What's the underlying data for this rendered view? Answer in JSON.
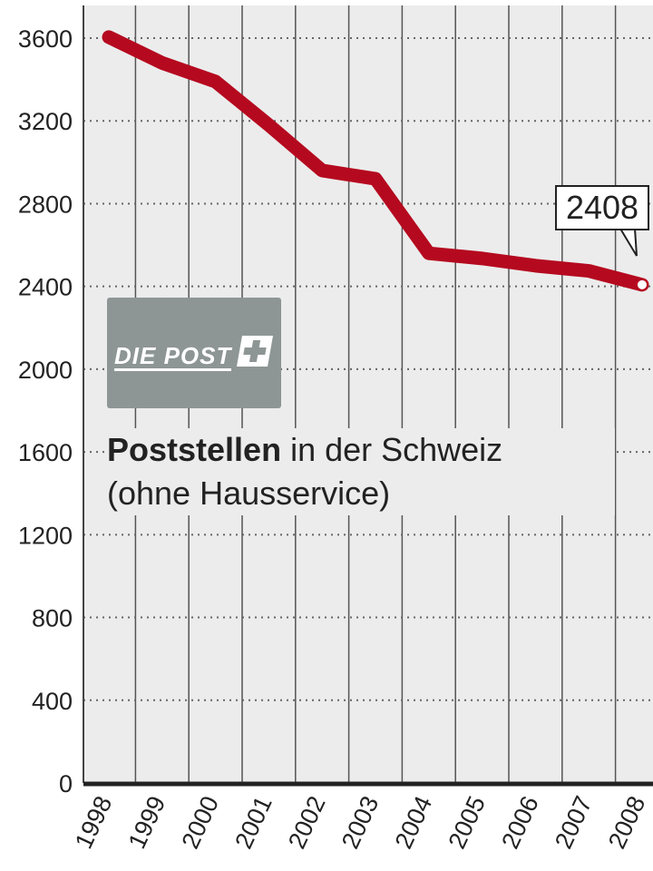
{
  "chart_data": {
    "type": "line",
    "title": "Poststellen",
    "title_rest": "in der Schweiz",
    "subtitle": "(ohne Hausservice)",
    "logo_text": "DIE POST",
    "x": [
      "1998",
      "1999",
      "2000",
      "2001",
      "2002",
      "2003",
      "2004",
      "2005",
      "2006",
      "2007",
      "2008"
    ],
    "values": [
      3605,
      3480,
      3390,
      3180,
      2960,
      2920,
      2560,
      2535,
      2500,
      2475,
      2408
    ],
    "ylim": [
      0,
      3600
    ],
    "yticks": [
      "0",
      "400",
      "800",
      "1200",
      "1600",
      "2000",
      "2400",
      "2800",
      "3200",
      "3600"
    ],
    "grid": true,
    "annotation": {
      "label": "2408",
      "at": "2008"
    },
    "colors": {
      "line": "#b5091f",
      "plot_bg": "#ececec",
      "grid": "#666666",
      "logo_bg": "#8e9695"
    }
  }
}
